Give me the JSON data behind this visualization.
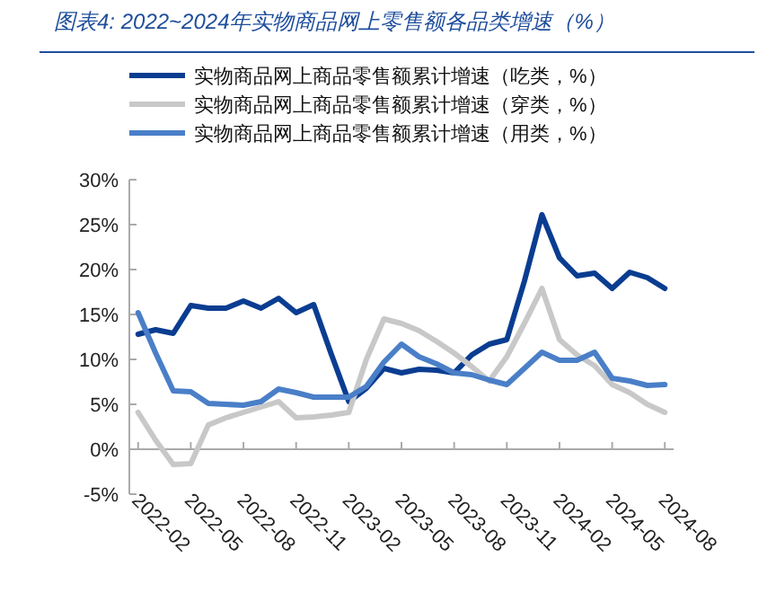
{
  "chart_data": {
    "type": "line",
    "title": "图表4:  2022~2024年实物商品网上零售额各品类增速（%）",
    "categories": [
      "2022-02",
      null,
      null,
      "2022-05",
      null,
      null,
      "2022-08",
      null,
      null,
      "2022-11",
      null,
      null,
      "2023-02",
      null,
      null,
      "2023-05",
      null,
      null,
      "2023-08",
      null,
      null,
      "2023-11",
      null,
      null,
      "2024-02",
      null,
      null,
      "2024-05",
      null,
      null,
      "2024-08"
    ],
    "series": [
      {
        "name": "实物商品网上商品零售额累计增速（吃类，%）",
        "color": "#0a3d91",
        "values": [
          12.8,
          13.3,
          12.9,
          16.0,
          15.7,
          15.7,
          16.5,
          15.7,
          16.8,
          15.2,
          16.1,
          10.6,
          5.3,
          6.8,
          9.0,
          8.5,
          8.9,
          8.8,
          8.5,
          10.5,
          11.7,
          12.2,
          18.7,
          26.1,
          21.3,
          19.3,
          19.6,
          17.9,
          19.7,
          19.1,
          17.9
        ]
      },
      {
        "name": "实物商品网上商品零售额累计增速（穿类，%）",
        "color": "#c8c8c8",
        "values": [
          4.1,
          1.0,
          -1.7,
          -1.6,
          2.7,
          3.5,
          4.1,
          4.7,
          5.3,
          3.5,
          3.6,
          3.8,
          4.1,
          10.0,
          14.5,
          14.0,
          13.2,
          12.0,
          10.7,
          9.2,
          7.6,
          10.3,
          14.0,
          17.9,
          12.2,
          10.5,
          9.3,
          7.2,
          6.3,
          5.0,
          4.1
        ]
      },
      {
        "name": "实物商品网上商品零售额累计增速（用类，%）",
        "color": "#4a7fc8",
        "values": [
          15.2,
          10.7,
          6.5,
          6.4,
          5.1,
          5.0,
          4.9,
          5.3,
          6.7,
          6.3,
          5.8,
          5.8,
          5.8,
          7.0,
          9.7,
          11.7,
          10.3,
          9.5,
          8.5,
          8.3,
          7.7,
          7.2,
          9.0,
          10.8,
          9.9,
          9.9,
          10.8,
          7.9,
          7.6,
          7.1,
          7.2
        ]
      }
    ],
    "ylim": [
      -5,
      30
    ],
    "yticks": [
      {
        "value": -5,
        "label": "-5%"
      },
      {
        "value": 0,
        "label": "0%"
      },
      {
        "value": 5,
        "label": "5%"
      },
      {
        "value": 10,
        "label": "10%"
      },
      {
        "value": 15,
        "label": "15%"
      },
      {
        "value": 20,
        "label": "20%"
      },
      {
        "value": 25,
        "label": "25%"
      },
      {
        "value": 30,
        "label": "30%"
      }
    ],
    "grid": false,
    "legend": "top",
    "marker": "none",
    "line_style": "solid"
  }
}
